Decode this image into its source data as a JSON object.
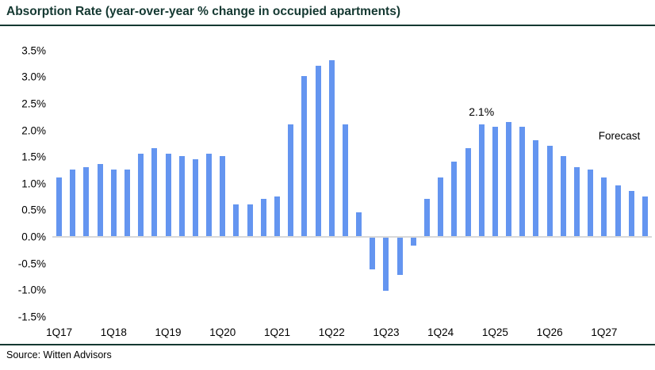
{
  "title": "Absorption Rate (year-over-year % change in occupied apartments)",
  "source": "Source: Witten Advisors",
  "colors": {
    "bar": "#6495F0",
    "title_text": "#143831",
    "rule": "#143831",
    "axis_line": "#D9D9D9",
    "tick_text": "#000000"
  },
  "chart_data": {
    "type": "bar",
    "title": "Absorption Rate (year-over-year % change in occupied apartments)",
    "xlabel": "",
    "ylabel": "",
    "grid": false,
    "legend": null,
    "ylim": [
      -1.5,
      3.5
    ],
    "categories": [
      "1Q17",
      "2Q17",
      "3Q17",
      "4Q17",
      "1Q18",
      "2Q18",
      "3Q18",
      "4Q18",
      "1Q19",
      "2Q19",
      "3Q19",
      "4Q19",
      "1Q20",
      "2Q20",
      "3Q20",
      "4Q20",
      "1Q21",
      "2Q21",
      "3Q21",
      "4Q21",
      "1Q22",
      "2Q22",
      "3Q22",
      "4Q22",
      "1Q23",
      "2Q23",
      "3Q23",
      "4Q23",
      "1Q24",
      "2Q24",
      "3Q24",
      "4Q24",
      "1Q25",
      "2Q25",
      "3Q25",
      "4Q25",
      "1Q26",
      "2Q26",
      "3Q26",
      "4Q26",
      "1Q27",
      "2Q27",
      "3Q27",
      "4Q27"
    ],
    "values": [
      1.1,
      1.25,
      1.3,
      1.35,
      1.25,
      1.25,
      1.55,
      1.65,
      1.55,
      1.5,
      1.45,
      1.55,
      1.5,
      0.6,
      0.6,
      0.7,
      0.75,
      2.1,
      3.0,
      3.2,
      3.3,
      2.1,
      0.45,
      -0.6,
      -1.0,
      -0.7,
      -0.15,
      0.7,
      1.1,
      1.4,
      1.65,
      2.1,
      2.05,
      2.15,
      2.05,
      1.8,
      1.7,
      1.5,
      1.3,
      1.25,
      1.1,
      0.95,
      0.85,
      0.75
    ],
    "y_ticks": [
      3.5,
      3.0,
      2.5,
      2.0,
      1.5,
      1.0,
      0.5,
      0.0,
      -0.5,
      -1.0,
      -1.5
    ],
    "y_tick_labels": [
      "3.5%",
      "3.0%",
      "2.5%",
      "2.0%",
      "1.5%",
      "1.0%",
      "0.5%",
      "0.0%",
      "-0.5%",
      "-1.0%",
      "-1.5%"
    ],
    "x_tick_labels": [
      "1Q17",
      "1Q18",
      "1Q19",
      "1Q20",
      "1Q21",
      "1Q22",
      "1Q23",
      "1Q24",
      "1Q25",
      "1Q26",
      "1Q27"
    ],
    "x_tick_every": 4,
    "annotations": [
      {
        "type": "data-label",
        "text": "2.1%",
        "index": 31
      },
      {
        "type": "note",
        "text": "Forecast"
      }
    ]
  }
}
